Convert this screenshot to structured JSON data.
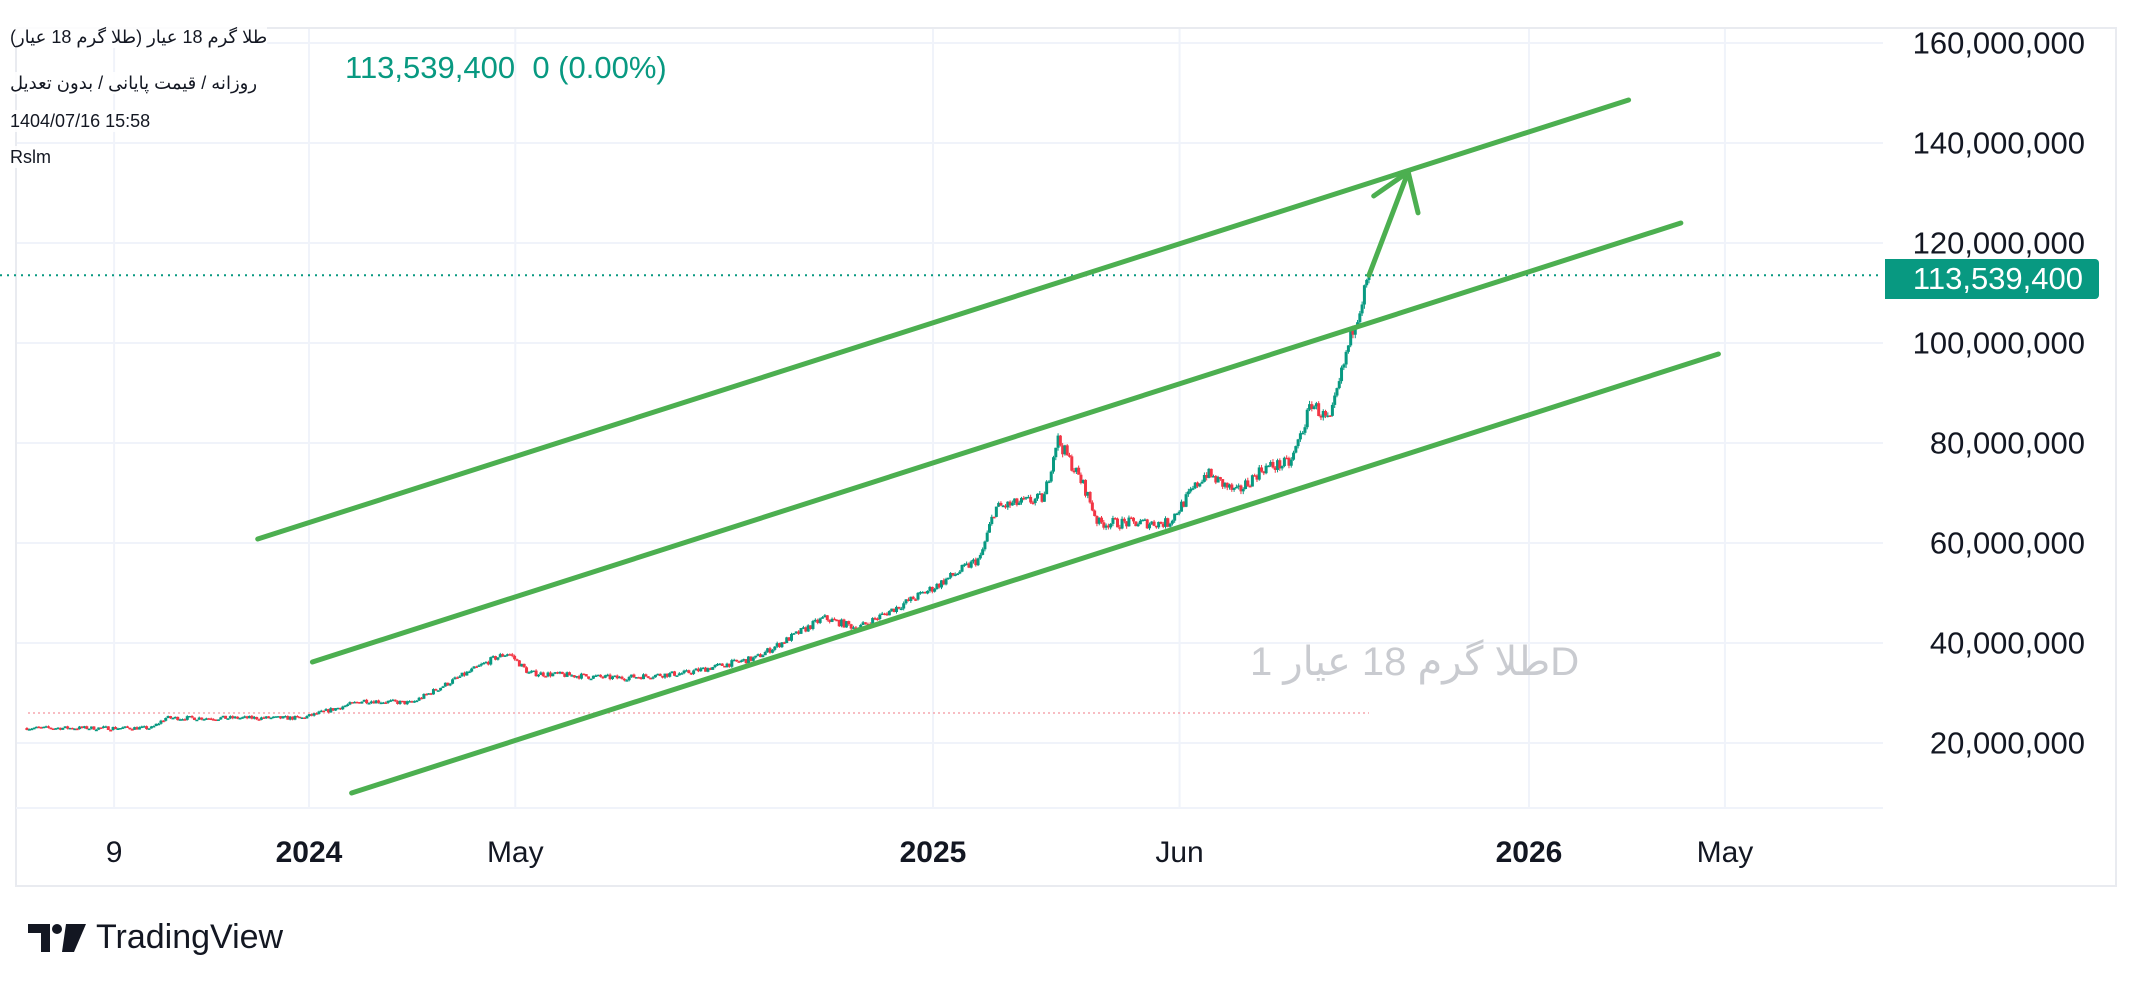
{
  "header": {
    "symbol_title": "طلا گرم 18 عیار (طلا گرم 18 عیار)",
    "subtitle": "روزانه / قیمت پایانی / بدون تعدیل",
    "datetime": "1404/07/16 15:58",
    "indicator": "Rslm",
    "ghost_text": "طلا گرم 18 عیار 1D",
    "last_price": "113,539,400",
    "change": "0 (0.00%)"
  },
  "price_label": "113,539,400",
  "branding": {
    "name": "TradingView"
  },
  "colors": {
    "up": "#089981",
    "down": "#f23645",
    "trendline": "#4caf50",
    "grid": "#f0f3fa"
  },
  "chart_data": {
    "type": "candlestick",
    "title": "طلا گرم 18 عیار",
    "y_ticks": [
      "160,000,000",
      "140,000,000",
      "120,000,000",
      "100,000,000",
      "80,000,000",
      "60,000,000",
      "40,000,000",
      "20,000,000"
    ],
    "y_tick_values": [
      160000000,
      140000000,
      120000000,
      100000000,
      80000000,
      60000000,
      40000000,
      20000000
    ],
    "x_ticks": [
      {
        "label": "9",
        "date": "2023-09-09",
        "bold": false
      },
      {
        "label": "2024",
        "date": "2024-01-01",
        "bold": true
      },
      {
        "label": "May",
        "date": "2024-05-01",
        "bold": false
      },
      {
        "label": "2025",
        "date": "2025-01-01",
        "bold": true
      },
      {
        "label": "Jun",
        "date": "2025-06-01",
        "bold": false
      },
      {
        "label": "2026",
        "date": "2026-01-01",
        "bold": true
      },
      {
        "label": "May",
        "date": "2026-05-01",
        "bold": false
      }
    ],
    "ylim": [
      0,
      168000000
    ],
    "grid": true,
    "last_value": 113539400,
    "previous_close_line": 26000000,
    "price_path": [
      [
        "2023-07-19",
        23000000
      ],
      [
        "2023-10-01",
        23000000
      ],
      [
        "2023-10-09",
        25000000
      ],
      [
        "2023-12-28",
        25000000
      ],
      [
        "2024-02-02",
        28500000
      ],
      [
        "2024-03-01",
        28000000
      ],
      [
        "2024-04-19",
        37000000
      ],
      [
        "2024-04-27",
        38000000
      ],
      [
        "2024-05-09",
        34000000
      ],
      [
        "2024-06-30",
        33000000
      ],
      [
        "2024-08-09",
        34000000
      ],
      [
        "2024-09-19",
        37000000
      ],
      [
        "2024-10-29",
        45000000
      ],
      [
        "2024-11-18",
        43000000
      ],
      [
        "2025-01-01",
        51000000
      ],
      [
        "2025-01-30",
        57000000
      ],
      [
        "2025-02-08",
        67000000
      ],
      [
        "2025-03-10",
        69000000
      ],
      [
        "2025-03-18",
        81000000
      ],
      [
        "2025-04-04",
        71000000
      ],
      [
        "2025-04-12",
        64000000
      ],
      [
        "2025-05-25",
        64000000
      ],
      [
        "2025-06-17",
        74000000
      ],
      [
        "2025-07-06",
        70000000
      ],
      [
        "2025-07-22",
        75000000
      ],
      [
        "2025-08-08",
        76000000
      ],
      [
        "2025-08-21",
        88000000
      ],
      [
        "2025-09-01",
        84000000
      ],
      [
        "2025-09-15",
        103000000
      ],
      [
        "2025-09-23",
        111000000
      ],
      [
        "2025-09-25",
        113539400
      ]
    ],
    "trendlines": [
      {
        "name": "upper-channel",
        "from": [
          "2023-12-02",
          60800000
        ],
        "to": [
          "2026-03-03",
          148600000
        ]
      },
      {
        "name": "middle-channel",
        "from": [
          "2024-01-03",
          36200000
        ],
        "to": [
          "2026-04-04",
          124000000
        ]
      },
      {
        "name": "lower-channel",
        "from": [
          "2024-01-26",
          10000000
        ],
        "to": [
          "2026-04-27",
          97800000
        ]
      }
    ],
    "arrow": {
      "from": [
        "2025-09-25",
        113539400
      ],
      "to": [
        "2025-10-19",
        134200000
      ]
    }
  }
}
